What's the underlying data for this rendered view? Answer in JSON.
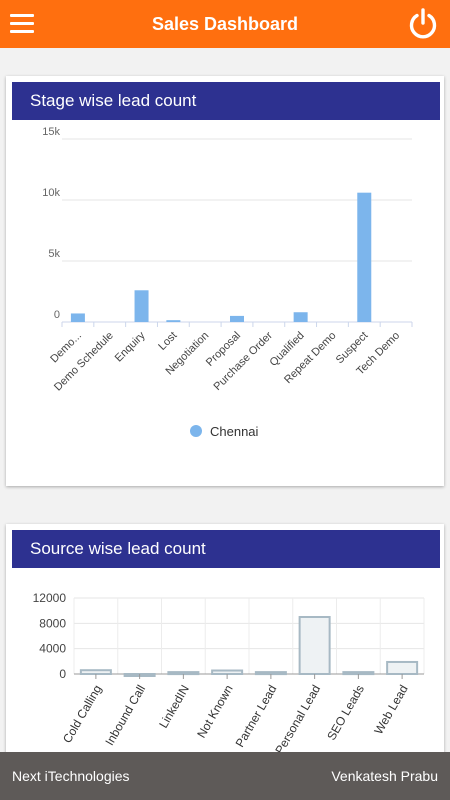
{
  "header": {
    "title": "Sales Dashboard",
    "menu_icon": "hamburger-menu-icon",
    "power_icon": "power-icon",
    "color": "#ff6f0f"
  },
  "stage_card": {
    "title": "Stage wise lead count"
  },
  "source_card": {
    "title": "Source wise lead count"
  },
  "footer": {
    "left_text": "Next iTechnologies",
    "right_text": "Venkatesh Prabu"
  },
  "chart_data": [
    {
      "type": "bar",
      "title": "Stage wise lead count",
      "categories": [
        "Demo...",
        "Demo Schedule",
        "Enquiry",
        "Lost",
        "Negotiation",
        "Proposal",
        "Purchase Order",
        "Qualified",
        "Repeat Demo",
        "Suspect",
        "Tech Demo"
      ],
      "series": [
        {
          "name": "Chennai",
          "values": [
            700,
            0,
            2600,
            150,
            0,
            500,
            0,
            800,
            0,
            10600,
            0
          ],
          "color": "#7cb5ec"
        }
      ],
      "y_ticks": [
        "0",
        "5k",
        "10k",
        "15k"
      ],
      "ylim": [
        0,
        15000
      ],
      "grid": true,
      "legend_position": "bottom"
    },
    {
      "type": "bar",
      "title": "Source wise lead count",
      "categories": [
        "Cold Calling",
        "Inbound Call",
        "LinkedIN",
        "Not Known",
        "Partner Lead",
        "Personal Lead",
        "SEO Leads",
        "Web Lead"
      ],
      "series": [
        {
          "values": [
            600,
            -150,
            300,
            550,
            300,
            9000,
            300,
            1900
          ],
          "color": "#a7b9c4"
        }
      ],
      "y_ticks": [
        "0",
        "4000",
        "8000",
        "12000"
      ],
      "ylim": [
        0,
        12000
      ],
      "grid": true
    }
  ]
}
